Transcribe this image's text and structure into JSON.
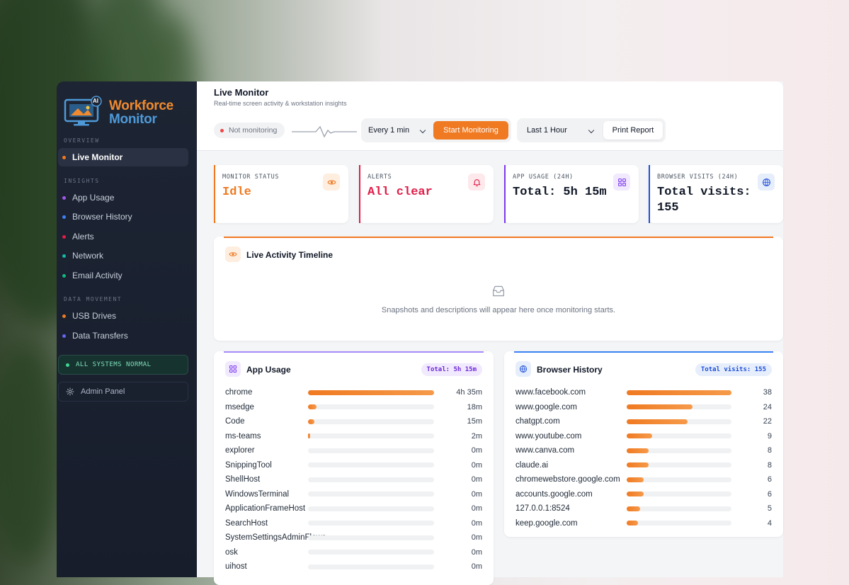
{
  "app": {
    "logo_badge": "AI",
    "logo_line1": "Workforce",
    "logo_line2": "Monitor"
  },
  "sidebar": {
    "sections": [
      {
        "label": "OVERVIEW"
      },
      {
        "label": "INSIGHTS"
      },
      {
        "label": "DATA MOVEMENT"
      }
    ],
    "items": [
      {
        "label": "Live Monitor",
        "dot": "#f07a22",
        "active": true
      },
      {
        "label": "App Usage",
        "dot": "#a259e6"
      },
      {
        "label": "Browser History",
        "dot": "#3b82f6"
      },
      {
        "label": "Alerts",
        "dot": "#e11d48"
      },
      {
        "label": "Network",
        "dot": "#14b8a6"
      },
      {
        "label": "Email Activity",
        "dot": "#10b981"
      },
      {
        "label": "USB Drives",
        "dot": "#f07a22"
      },
      {
        "label": "Data Transfers",
        "dot": "#6366f1"
      }
    ],
    "system_status": "ALL SYSTEMS NORMAL",
    "admin_label": "Admin Panel"
  },
  "header": {
    "title": "Live Monitor",
    "subtitle": "Real-time screen activity & workstation insights",
    "status": "Not monitoring",
    "interval": "Every 1 min",
    "start_button": "Start Monitoring",
    "range": "Last 1 Hour",
    "print_button": "Print Report"
  },
  "cards": [
    {
      "label": "MONITOR STATUS",
      "value": "Idle",
      "color": "#f07a22",
      "icon": "eye-icon"
    },
    {
      "label": "ALERTS",
      "value": "All clear",
      "color": "#e11d48",
      "icon": "bell-icon"
    },
    {
      "label": "APP USAGE (24H)",
      "value": "Total: 5h 15m",
      "color": "#7c3aed",
      "icon": "grid-icon"
    },
    {
      "label": "BROWSER VISITS (24H)",
      "value": "Total visits: 155",
      "color": "#1d4ed8",
      "icon": "globe-icon"
    }
  ],
  "timeline": {
    "title": "Live Activity Timeline",
    "empty_text": "Snapshots and descriptions will appear here once monitoring starts."
  },
  "app_usage": {
    "title": "App Usage",
    "badge": "Total: 5h 15m",
    "rows": [
      {
        "name": "chrome",
        "value": "4h 35m",
        "fraction": 1.0
      },
      {
        "name": "msedge",
        "value": "18m",
        "fraction": 0.07
      },
      {
        "name": "Code",
        "value": "15m",
        "fraction": 0.05
      },
      {
        "name": "ms-teams",
        "value": "2m",
        "fraction": 0.01
      },
      {
        "name": "explorer",
        "value": "0m",
        "fraction": 0
      },
      {
        "name": "SnippingTool",
        "value": "0m",
        "fraction": 0
      },
      {
        "name": "ShellHost",
        "value": "0m",
        "fraction": 0
      },
      {
        "name": "WindowsTerminal",
        "value": "0m",
        "fraction": 0
      },
      {
        "name": "ApplicationFrameHost",
        "value": "0m",
        "fraction": 0
      },
      {
        "name": "SearchHost",
        "value": "0m",
        "fraction": 0
      },
      {
        "name": "SystemSettingsAdminFlows",
        "value": "0m",
        "fraction": 0
      },
      {
        "name": "osk",
        "value": "0m",
        "fraction": 0
      },
      {
        "name": "uihost",
        "value": "0m",
        "fraction": 0
      }
    ]
  },
  "browser_history": {
    "title": "Browser History",
    "badge": "Total visits: 155",
    "rows": [
      {
        "name": "www.facebook.com",
        "value": "38",
        "fraction": 1.0
      },
      {
        "name": "www.google.com",
        "value": "24",
        "fraction": 0.63
      },
      {
        "name": "chatgpt.com",
        "value": "22",
        "fraction": 0.58
      },
      {
        "name": "www.youtube.com",
        "value": "9",
        "fraction": 0.24
      },
      {
        "name": "www.canva.com",
        "value": "8",
        "fraction": 0.21
      },
      {
        "name": "claude.ai",
        "value": "8",
        "fraction": 0.21
      },
      {
        "name": "chromewebstore.google.com",
        "value": "6",
        "fraction": 0.16
      },
      {
        "name": "accounts.google.com",
        "value": "6",
        "fraction": 0.16
      },
      {
        "name": "127.0.0.1:8524",
        "value": "5",
        "fraction": 0.13
      },
      {
        "name": "keep.google.com",
        "value": "4",
        "fraction": 0.11
      }
    ]
  }
}
